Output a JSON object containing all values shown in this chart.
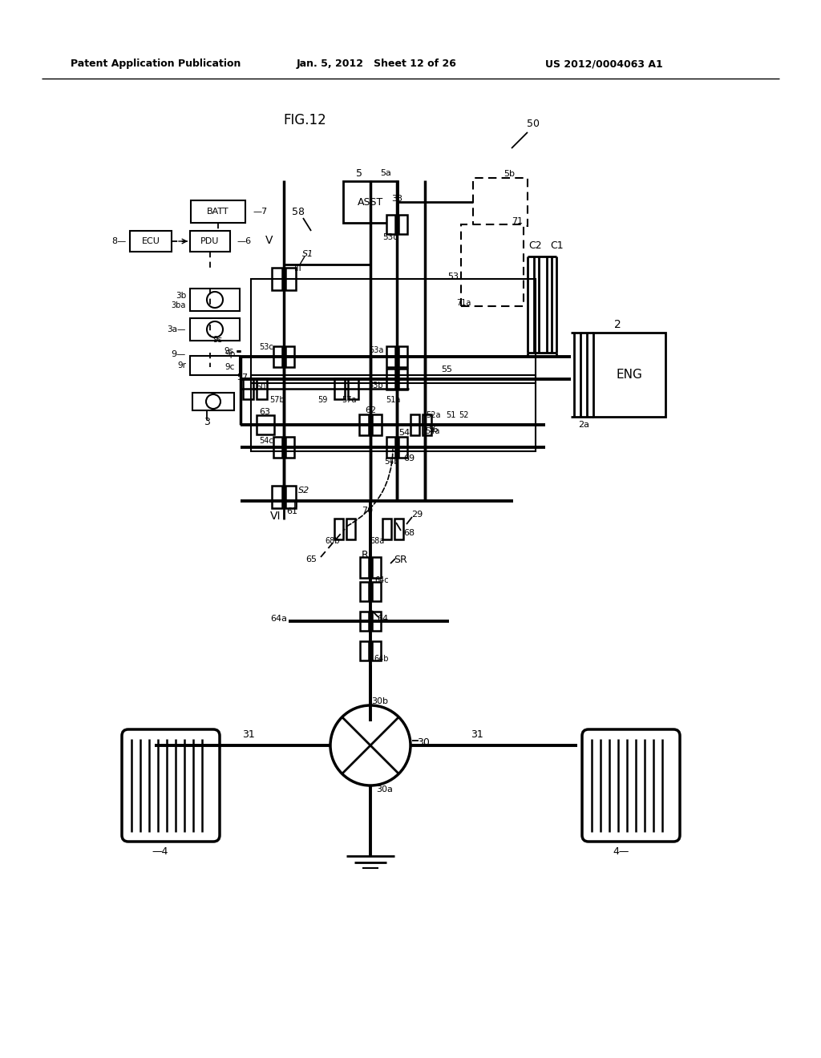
{
  "header_left": "Patent Application Publication",
  "header_center": "Jan. 5, 2012   Sheet 12 of 26",
  "header_right": "US 2012/0004063 A1",
  "fig_title": "FIG.12",
  "bg_color": "#ffffff",
  "lc": "#000000"
}
